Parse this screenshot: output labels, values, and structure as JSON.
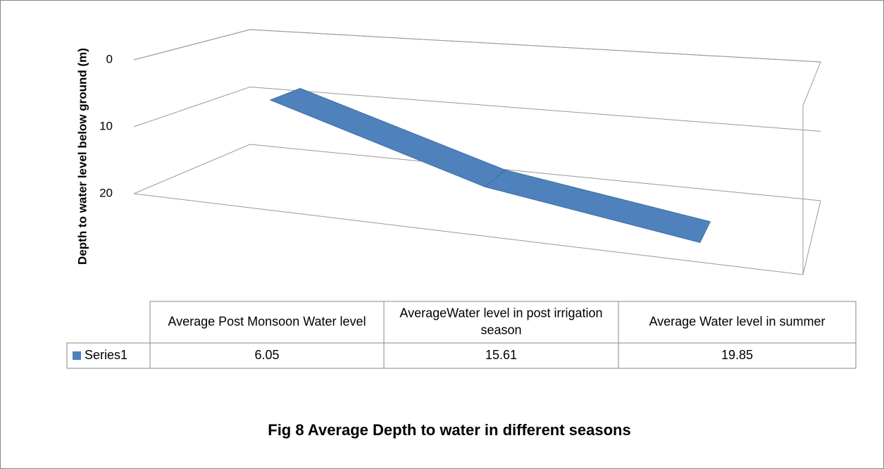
{
  "chart_data": {
    "type": "line",
    "style": "3d",
    "title": "Fig 8 Average Depth to water in different seasons",
    "y_label": "Depth to water level below ground (m)",
    "categories": [
      "Average Post Monsoon Water level",
      "AverageWater level in post irrigation season",
      "Average Water level in summer"
    ],
    "series": [
      {
        "name": "Series1",
        "color": "#4f81bd",
        "values": [
          6.05,
          15.61,
          19.85
        ]
      }
    ],
    "ylim": [
      0,
      20
    ],
    "yticks": [
      0,
      10,
      20
    ],
    "y_reversed": true,
    "grid": true,
    "data_table": true
  }
}
